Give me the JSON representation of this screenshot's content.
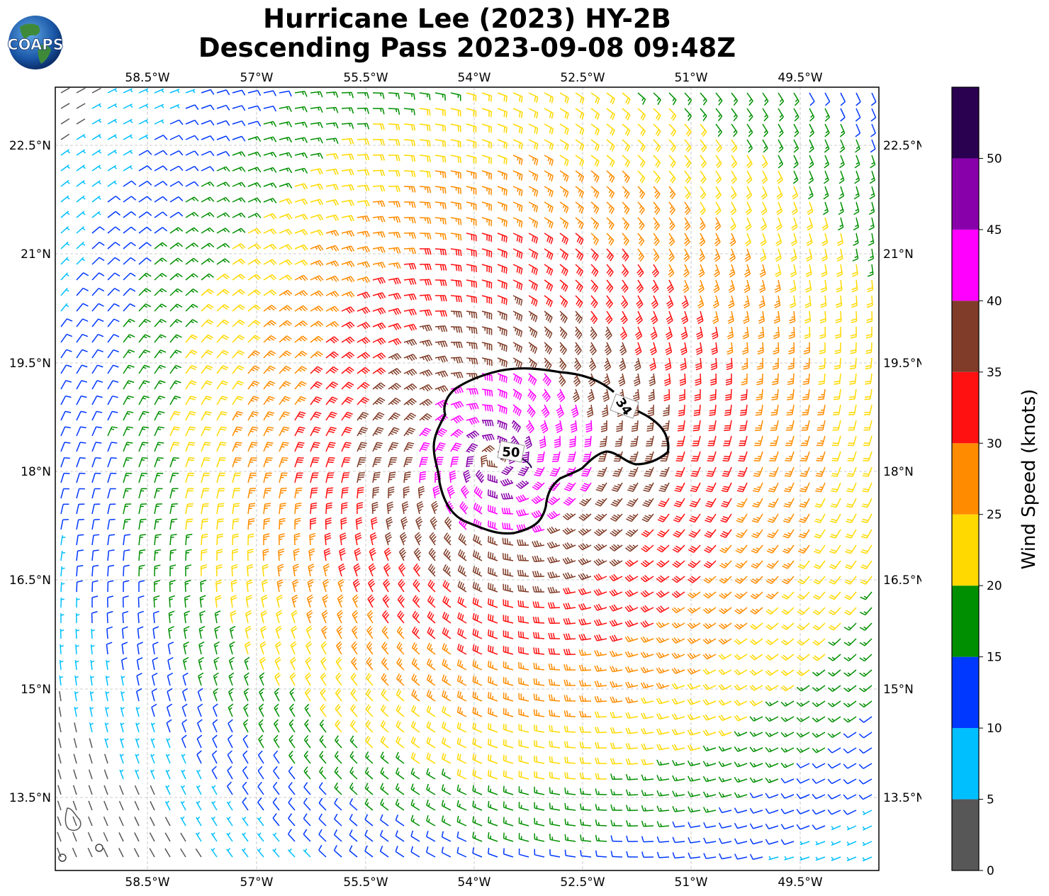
{
  "title": {
    "line1": "Hurricane Lee (2023) HY-2B",
    "line2": "Descending Pass 2023-09-08 09:48Z"
  },
  "logo": {
    "text": "COAPS",
    "icon": "globe-icon"
  },
  "map": {
    "lon_ticks": [
      "58.5°W",
      "57°W",
      "55.5°W",
      "54°W",
      "52.5°W",
      "51°W",
      "49.5°W"
    ],
    "lat_ticks": [
      "22.5°N",
      "21°N",
      "19.5°N",
      "18°N",
      "16.5°N",
      "15°N",
      "13.5°N"
    ],
    "contour_labels": [
      "34",
      "50"
    ],
    "storm_center": {
      "lon": -53.5,
      "lat": 18.15
    },
    "grid": true
  },
  "colorbar": {
    "label": "Wind Speed (knots)",
    "ticks": [
      "0",
      "5",
      "10",
      "15",
      "20",
      "25",
      "30",
      "35",
      "40",
      "45",
      "50"
    ],
    "bins": [
      {
        "min": 0,
        "max": 5,
        "color": "#575757"
      },
      {
        "min": 5,
        "max": 10,
        "color": "#00bfff"
      },
      {
        "min": 10,
        "max": 15,
        "color": "#0038ff"
      },
      {
        "min": 15,
        "max": 20,
        "color": "#008f00"
      },
      {
        "min": 20,
        "max": 25,
        "color": "#ffd900"
      },
      {
        "min": 25,
        "max": 30,
        "color": "#ff8c00"
      },
      {
        "min": 30,
        "max": 35,
        "color": "#ff1111"
      },
      {
        "min": 35,
        "max": 40,
        "color": "#803c28"
      },
      {
        "min": 40,
        "max": 45,
        "color": "#ff00ff"
      },
      {
        "min": 45,
        "max": 50,
        "color": "#8800aa"
      },
      {
        "min": 50,
        "max": 55,
        "color": "#2a0050"
      }
    ]
  }
}
